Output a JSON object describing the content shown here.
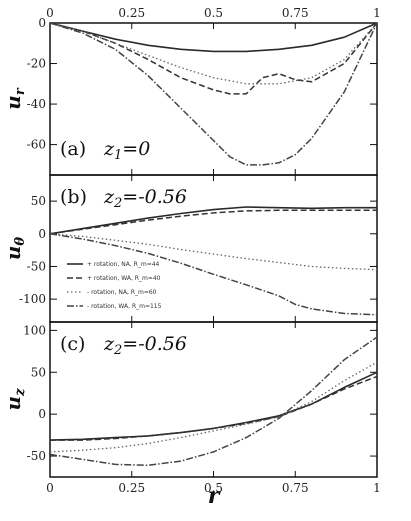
{
  "chart_data": [
    {
      "type": "line",
      "panel_label": "(a)",
      "condition": "z",
      "condition_sub": "1",
      "condition_val": "=0",
      "ylabel": "u",
      "ylabel_sub": "r",
      "xlabel": "",
      "xlim": [
        0,
        1
      ],
      "ylim": [
        -75,
        0
      ],
      "xticks": [
        "0",
        "0.25",
        "0.5",
        "0.75",
        "1"
      ],
      "yticks": [
        0,
        -20,
        -40,
        -60
      ],
      "legend": null,
      "series": [
        {
          "style": "solid",
          "x": [
            0,
            0.1,
            0.2,
            0.3,
            0.4,
            0.5,
            0.6,
            0.7,
            0.8,
            0.9,
            1.0
          ],
          "y": [
            0,
            -4,
            -8,
            -11,
            -13,
            -14,
            -14,
            -13,
            -11,
            -7,
            0
          ]
        },
        {
          "style": "dashed",
          "x": [
            0,
            0.1,
            0.2,
            0.3,
            0.4,
            0.5,
            0.55,
            0.6,
            0.65,
            0.7,
            0.75,
            0.8,
            0.9,
            1.0
          ],
          "y": [
            0,
            -4,
            -10,
            -18,
            -27,
            -33,
            -35,
            -35,
            -27,
            -25,
            -28,
            -29,
            -20,
            0
          ]
        },
        {
          "style": "dotted",
          "x": [
            0,
            0.1,
            0.2,
            0.3,
            0.4,
            0.5,
            0.6,
            0.7,
            0.8,
            0.9,
            1.0
          ],
          "y": [
            0,
            -4,
            -10,
            -16,
            -22,
            -27,
            -30,
            -30,
            -27,
            -18,
            0
          ]
        },
        {
          "style": "dashdot",
          "x": [
            0,
            0.1,
            0.2,
            0.3,
            0.4,
            0.5,
            0.55,
            0.6,
            0.65,
            0.7,
            0.75,
            0.8,
            0.9,
            1.0
          ],
          "y": [
            0,
            -5,
            -13,
            -26,
            -42,
            -58,
            -66,
            -70,
            -70,
            -69,
            -65,
            -57,
            -34,
            0
          ]
        }
      ]
    },
    {
      "type": "line",
      "panel_label": "(b)",
      "condition": "z",
      "condition_sub": "2",
      "condition_val": "=-0.56",
      "ylabel": "u",
      "ylabel_sub": "θ",
      "xlabel": "",
      "xlim": [
        0,
        1
      ],
      "ylim": [
        -135,
        90
      ],
      "xticks": [],
      "yticks": [
        50,
        0,
        -50,
        -100
      ],
      "legend": [
        "+ rotation, NA, R_m=44",
        "+ rotation, WA, R_m=40",
        "- rotation, NA, R_m=60",
        "- rotation, WA, R_m=115"
      ],
      "legend_position": "center-left",
      "series": [
        {
          "name": "+ rotation, NA, R_m=44",
          "style": "solid",
          "x": [
            0,
            0.1,
            0.2,
            0.3,
            0.4,
            0.5,
            0.6,
            0.7,
            0.8,
            0.9,
            1.0
          ],
          "y": [
            0,
            8,
            16,
            24,
            31,
            37,
            41,
            40,
            39,
            40,
            40
          ]
        },
        {
          "name": "+ rotation, WA, R_m=40",
          "style": "dashed",
          "x": [
            0,
            0.1,
            0.2,
            0.3,
            0.4,
            0.5,
            0.6,
            0.7,
            0.8,
            0.9,
            1.0
          ],
          "y": [
            0,
            7,
            14,
            21,
            27,
            32,
            35,
            36,
            36,
            36,
            36
          ]
        },
        {
          "name": "- rotation, NA, R_m=60",
          "style": "dotted",
          "x": [
            0,
            0.1,
            0.2,
            0.3,
            0.4,
            0.5,
            0.6,
            0.7,
            0.8,
            0.9,
            1.0
          ],
          "y": [
            0,
            -4,
            -10,
            -16,
            -24,
            -31,
            -38,
            -44,
            -50,
            -53,
            -55
          ]
        },
        {
          "name": "- rotation, WA, R_m=115",
          "style": "dashdot",
          "x": [
            0,
            0.1,
            0.2,
            0.3,
            0.4,
            0.5,
            0.6,
            0.7,
            0.75,
            0.8,
            0.9,
            1.0
          ],
          "y": [
            0,
            -8,
            -18,
            -30,
            -45,
            -62,
            -78,
            -95,
            -108,
            -115,
            -122,
            -124
          ]
        }
      ]
    },
    {
      "type": "line",
      "panel_label": "(c)",
      "condition": "z",
      "condition_sub": "2",
      "condition_val": "=-0.56",
      "ylabel": "u",
      "ylabel_sub": "z",
      "xlabel": "r",
      "xlim": [
        0,
        1
      ],
      "ylim": [
        -75,
        110
      ],
      "xticks": [
        "0",
        "0.25",
        "0.5",
        "0.75",
        "1"
      ],
      "yticks": [
        100,
        50,
        0,
        -50
      ],
      "legend": null,
      "series": [
        {
          "style": "solid",
          "x": [
            0,
            0.1,
            0.2,
            0.3,
            0.4,
            0.5,
            0.6,
            0.7,
            0.8,
            0.9,
            1.0
          ],
          "y": [
            -31,
            -30,
            -28,
            -26,
            -22,
            -17,
            -10,
            -2,
            12,
            32,
            50
          ]
        },
        {
          "style": "dashed",
          "x": [
            0,
            0.1,
            0.2,
            0.3,
            0.4,
            0.5,
            0.6,
            0.7,
            0.8,
            0.9,
            1.0
          ],
          "y": [
            -31,
            -31,
            -29,
            -26,
            -22,
            -17,
            -11,
            -3,
            12,
            30,
            45
          ]
        },
        {
          "style": "dotted",
          "x": [
            0,
            0.1,
            0.2,
            0.3,
            0.4,
            0.5,
            0.6,
            0.7,
            0.8,
            0.9,
            1.0
          ],
          "y": [
            -45,
            -43,
            -40,
            -35,
            -28,
            -20,
            -12,
            -3,
            15,
            40,
            62
          ]
        },
        {
          "style": "dashdot",
          "x": [
            0,
            0.1,
            0.2,
            0.3,
            0.4,
            0.5,
            0.6,
            0.7,
            0.8,
            0.9,
            1.0
          ],
          "y": [
            -48,
            -54,
            -60,
            -61,
            -56,
            -45,
            -28,
            -5,
            28,
            65,
            92
          ]
        }
      ]
    }
  ],
  "colors": {
    "axes": "#111111",
    "solid": "#2a2a2a",
    "dashed": "#333333",
    "dotted": "#666666",
    "dashdot": "#444444"
  }
}
